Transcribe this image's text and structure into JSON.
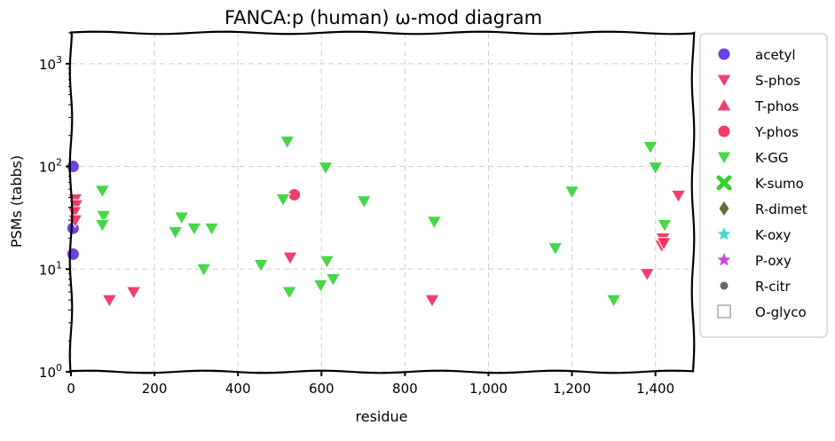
{
  "chart_data": {
    "type": "scatter",
    "title": "FANCA:p (human) ω-mod diagram",
    "xlabel": "residue",
    "ylabel": "PSMs (tabbs)",
    "xlim": [
      0,
      1490
    ],
    "ylim": [
      1,
      2000
    ],
    "yscale": "log",
    "grid": true,
    "legend_position": "outside-right",
    "x_ticks": [
      0,
      200,
      400,
      600,
      800,
      1000,
      1200,
      1400
    ],
    "x_tick_labels": [
      "0",
      "200",
      "400",
      "600",
      "800",
      "1,000",
      "1,200",
      "1,400"
    ],
    "y_ticks": [
      1,
      10,
      100,
      1000
    ],
    "y_tick_labels": [
      {
        "base": "10",
        "exp": "0"
      },
      {
        "base": "10",
        "exp": "1"
      },
      {
        "base": "10",
        "exp": "2"
      },
      {
        "base": "10",
        "exp": "3"
      }
    ],
    "series": [
      {
        "name": "acetyl",
        "marker": "circle",
        "color": "#5a2ee8",
        "points": [
          [
            5,
            100
          ],
          [
            5,
            25
          ],
          [
            5,
            14
          ]
        ]
      },
      {
        "name": "S-phos",
        "marker": "triangle-down",
        "color": "#ee2a5c",
        "points": [
          [
            10,
            48
          ],
          [
            12,
            42
          ],
          [
            8,
            36
          ],
          [
            10,
            30
          ],
          [
            92,
            5
          ],
          [
            150,
            6
          ],
          [
            525,
            13
          ],
          [
            865,
            5
          ],
          [
            1380,
            9
          ],
          [
            1415,
            17
          ],
          [
            1418,
            20
          ],
          [
            1420,
            18
          ],
          [
            1455,
            52
          ]
        ]
      },
      {
        "name": "T-phos",
        "marker": "triangle-up",
        "color": "#ee2a5c",
        "points": []
      },
      {
        "name": "Y-phos",
        "marker": "circle",
        "color": "#ee2a5c",
        "points": [
          [
            535,
            53
          ]
        ]
      },
      {
        "name": "K-GG",
        "marker": "triangle-down",
        "color": "#34d134",
        "points": [
          [
            75,
            58
          ],
          [
            78,
            33
          ],
          [
            75,
            27
          ],
          [
            250,
            23
          ],
          [
            265,
            32
          ],
          [
            295,
            25
          ],
          [
            318,
            10
          ],
          [
            337,
            25
          ],
          [
            455,
            11
          ],
          [
            508,
            48
          ],
          [
            518,
            175
          ],
          [
            523,
            6
          ],
          [
            598,
            7
          ],
          [
            610,
            98
          ],
          [
            613,
            12
          ],
          [
            628,
            8
          ],
          [
            702,
            46
          ],
          [
            870,
            29
          ],
          [
            1160,
            16
          ],
          [
            1200,
            57
          ],
          [
            1300,
            5
          ],
          [
            1388,
            155
          ],
          [
            1400,
            98
          ],
          [
            1422,
            27
          ]
        ]
      },
      {
        "name": "K-sumo",
        "marker": "x",
        "color": "#34d134",
        "points": []
      },
      {
        "name": "R-dimet",
        "marker": "diamond",
        "color": "#6b6b3a",
        "points": []
      },
      {
        "name": "K-oxy",
        "marker": "star",
        "color": "#35cfcf",
        "points": []
      },
      {
        "name": "P-oxy",
        "marker": "star",
        "color": "#c33ad6",
        "points": []
      },
      {
        "name": "R-citr",
        "marker": "dot",
        "color": "#666666",
        "points": []
      },
      {
        "name": "O-glyco",
        "marker": "square-open",
        "color": "#999999",
        "points": []
      }
    ]
  }
}
